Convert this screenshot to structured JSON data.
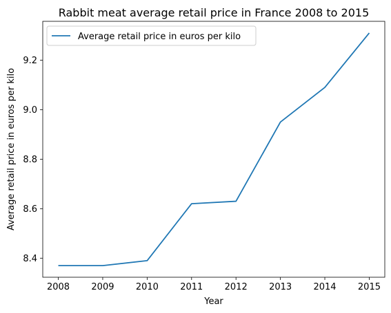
{
  "chart_data": {
    "type": "line",
    "title": "Rabbit meat average retail price in France 2008 to 2015",
    "xlabel": "Year",
    "ylabel": "Average retail price in euros per kilo",
    "x": [
      2008,
      2009,
      2010,
      2011,
      2012,
      2013,
      2014,
      2015
    ],
    "series": [
      {
        "name": "Average retail price in euros per kilo",
        "values": [
          8.37,
          8.37,
          8.39,
          8.62,
          8.63,
          8.95,
          9.09,
          9.31
        ],
        "color": "#1f77b4"
      }
    ],
    "xticks": [
      "2008",
      "2009",
      "2010",
      "2011",
      "2012",
      "2013",
      "2014",
      "2015"
    ],
    "yticks": [
      "8.4",
      "8.6",
      "8.8",
      "9.0",
      "9.2"
    ],
    "ytick_values": [
      8.4,
      8.6,
      8.8,
      9.0,
      9.2
    ],
    "xlim": [
      2007.65,
      2015.35
    ],
    "ylim": [
      8.323,
      9.357
    ],
    "grid": false,
    "legend_position": "upper-left"
  }
}
